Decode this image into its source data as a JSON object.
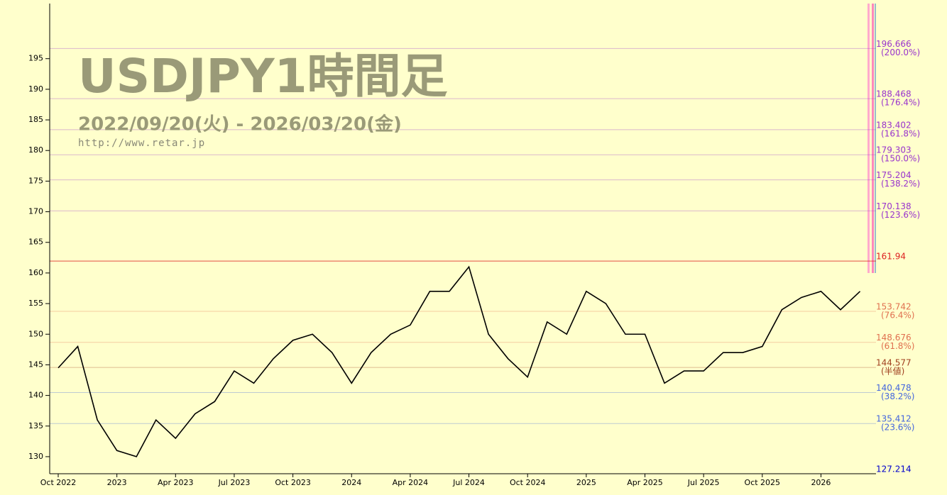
{
  "chart_data": {
    "type": "line",
    "title": "USDJPY1時間足",
    "subtitle": "2022/09/20(火) - 2026/03/20(金)",
    "source": "http://www.retar.jp",
    "x": [
      "2022-10",
      "2022-11",
      "2022-12",
      "2023-01",
      "2023-02",
      "2023-03",
      "2023-04",
      "2023-05",
      "2023-06",
      "2023-07",
      "2023-08",
      "2023-09",
      "2023-10",
      "2023-11",
      "2023-12",
      "2024-01",
      "2024-02",
      "2024-03",
      "2024-04",
      "2024-05",
      "2024-06",
      "2024-07",
      "2024-08",
      "2024-09",
      "2024-10",
      "2024-11",
      "2024-12",
      "2025-01",
      "2025-02",
      "2025-03",
      "2025-04",
      "2025-05",
      "2025-06",
      "2025-07",
      "2025-08",
      "2025-09",
      "2025-10",
      "2025-11",
      "2025-12",
      "2026-01",
      "2026-02",
      "2026-03"
    ],
    "series": [
      {
        "name": "USDJPY",
        "color": "#000000",
        "values": [
          144.5,
          148,
          136,
          131,
          130,
          136,
          133,
          137,
          139,
          144,
          142,
          146,
          149,
          150,
          147,
          142,
          147,
          150,
          151.5,
          157,
          157,
          161,
          150,
          146,
          143,
          152,
          150,
          157,
          155,
          150,
          150,
          142,
          144,
          144,
          147,
          147,
          148,
          154,
          156,
          157,
          154,
          157
        ]
      }
    ],
    "xticks": [
      {
        "value": "2022-10",
        "label": "Oct 2022"
      },
      {
        "value": "2023-01",
        "label": "2023"
      },
      {
        "value": "2023-04",
        "label": "Apr 2023"
      },
      {
        "value": "2023-07",
        "label": "Jul 2023"
      },
      {
        "value": "2023-10",
        "label": "Oct 2023"
      },
      {
        "value": "2024-01",
        "label": "2024"
      },
      {
        "value": "2024-04",
        "label": "Apr 2024"
      },
      {
        "value": "2024-07",
        "label": "Jul 2024"
      },
      {
        "value": "2024-10",
        "label": "Oct 2024"
      },
      {
        "value": "2025-01",
        "label": "2025"
      },
      {
        "value": "2025-04",
        "label": "Apr 2025"
      },
      {
        "value": "2025-07",
        "label": "Jul 2025"
      },
      {
        "value": "2025-10",
        "label": "Oct 2025"
      },
      {
        "value": "2026-01",
        "label": "2026"
      }
    ],
    "ylim": [
      127.214,
      204
    ],
    "yticks": [
      130,
      135,
      140,
      145,
      150,
      155,
      160,
      165,
      170,
      175,
      180,
      185,
      190,
      195
    ],
    "levels": [
      {
        "value": 196.666,
        "ratio": "(200.0%)",
        "color": "#9933cc"
      },
      {
        "value": 188.468,
        "ratio": "(176.4%)",
        "color": "#9933cc"
      },
      {
        "value": 183.402,
        "ratio": "(161.8%)",
        "color": "#9933cc"
      },
      {
        "value": 179.303,
        "ratio": "(150.0%)",
        "color": "#9933cc"
      },
      {
        "value": 175.204,
        "ratio": "(138.2%)",
        "color": "#9933cc"
      },
      {
        "value": 170.138,
        "ratio": "(123.6%)",
        "color": "#9933cc"
      },
      {
        "value": 161.94,
        "color": "#dd2222"
      },
      {
        "value": 153.742,
        "ratio": "(76.4%)",
        "color": "#e07050"
      },
      {
        "value": 148.676,
        "ratio": "(61.8%)",
        "color": "#e07050"
      },
      {
        "value": 144.577,
        "ratio": "(半値)",
        "color": "#a04020"
      },
      {
        "value": 140.478,
        "ratio": "(38.2%)",
        "color": "#4466dd"
      },
      {
        "value": 135.412,
        "ratio": "(23.6%)",
        "color": "#4466dd"
      },
      {
        "value": 127.214,
        "color": "#0000cc"
      }
    ]
  }
}
